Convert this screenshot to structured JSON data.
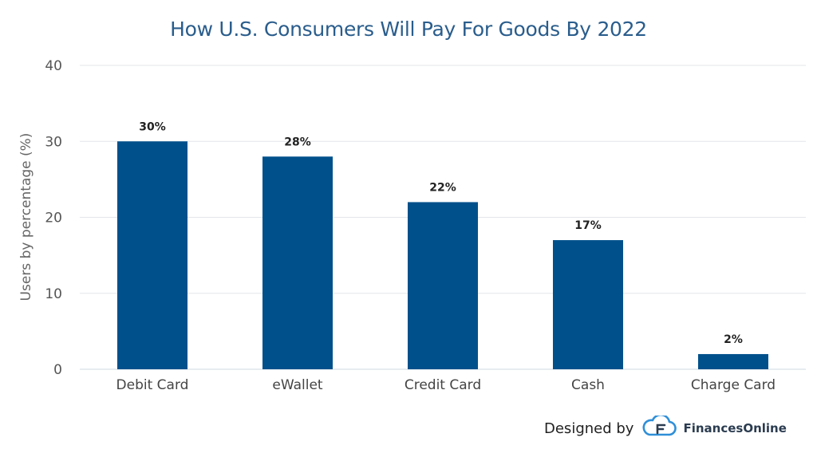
{
  "chart_data": {
    "type": "bar",
    "title": "How U.S. Consumers Will Pay For Goods By 2022",
    "xlabel": "",
    "ylabel": "Users by percentage (%)",
    "categories": [
      "Debit Card",
      "eWallet",
      "Credit Card",
      "Cash",
      "Charge Card"
    ],
    "values": [
      30,
      28,
      22,
      17,
      2
    ],
    "data_labels": [
      "30%",
      "28%",
      "22%",
      "17%",
      "2%"
    ],
    "y_ticks": [
      "0",
      "10",
      "20",
      "30",
      "40"
    ],
    "ylim": [
      0,
      40
    ],
    "grid": true,
    "legend": "none",
    "bar_color": "#00508b"
  },
  "credit": {
    "text": "Designed by",
    "brand": "FinancesOnline",
    "logo_icon": "cloud-f-logo-icon"
  }
}
